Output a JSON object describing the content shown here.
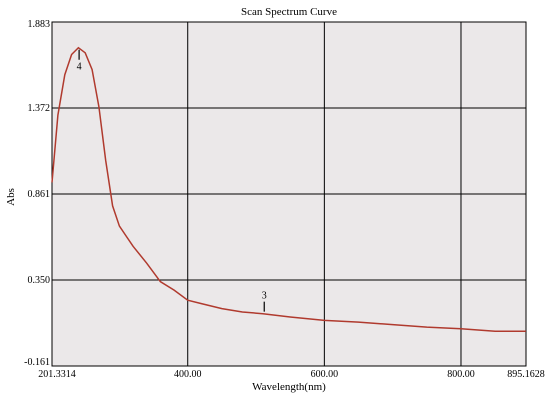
{
  "chart_data": {
    "type": "line",
    "title": "Scan Spectrum Curve",
    "xlabel": "Wavelength(nm)",
    "ylabel": "Abs",
    "xlim": [
      201.3314,
      895.1628
    ],
    "ylim": [
      -0.161,
      1.883
    ],
    "x_ticks": [
      {
        "value": 201.3314,
        "label": "201.3314"
      },
      {
        "value": 400,
        "label": "400.00"
      },
      {
        "value": 600,
        "label": "600.00"
      },
      {
        "value": 800,
        "label": "800.00"
      },
      {
        "value": 895.1628,
        "label": "895.1628"
      }
    ],
    "y_ticks": [
      {
        "value": 1.883,
        "label": "1.883"
      },
      {
        "value": 1.372,
        "label": "1.372"
      },
      {
        "value": 0.861,
        "label": "0.861"
      },
      {
        "value": 0.35,
        "label": "0.350"
      },
      {
        "value": -0.161,
        "label": "-0.161"
      }
    ],
    "grid": true,
    "line_color": "#b03a2e",
    "plot_background": "#ebe8e9",
    "series": [
      {
        "values": [
          [
            201.3,
            0.93
          ],
          [
            210,
            1.33
          ],
          [
            220,
            1.57
          ],
          [
            230,
            1.69
          ],
          [
            240,
            1.73
          ],
          [
            250,
            1.7
          ],
          [
            260,
            1.6
          ],
          [
            270,
            1.38
          ],
          [
            280,
            1.06
          ],
          [
            290,
            0.79
          ],
          [
            300,
            0.67
          ],
          [
            320,
            0.55
          ],
          [
            340,
            0.45
          ],
          [
            360,
            0.34
          ],
          [
            380,
            0.29
          ],
          [
            400,
            0.23
          ],
          [
            420,
            0.21
          ],
          [
            450,
            0.18
          ],
          [
            480,
            0.16
          ],
          [
            510,
            0.15
          ],
          [
            550,
            0.13
          ],
          [
            600,
            0.11
          ],
          [
            650,
            0.1
          ],
          [
            700,
            0.085
          ],
          [
            750,
            0.07
          ],
          [
            800,
            0.06
          ],
          [
            850,
            0.045
          ],
          [
            895,
            0.045
          ]
        ]
      }
    ],
    "annotations": [
      {
        "label": "4",
        "x": 241,
        "y": 1.73
      },
      {
        "label": "3",
        "x": 512,
        "y": 0.15
      }
    ]
  }
}
